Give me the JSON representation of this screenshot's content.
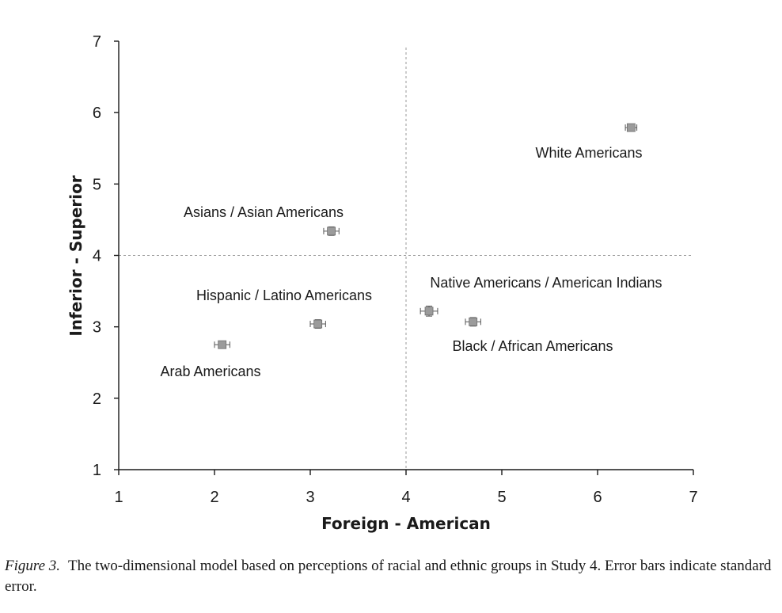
{
  "chart_data": {
    "type": "scatter",
    "xlabel": "Foreign - American",
    "ylabel": "Inferior - Superior",
    "xlim": [
      1,
      7
    ],
    "ylim": [
      1,
      7
    ],
    "x_ticks": [
      "1",
      "2",
      "3",
      "4",
      "5",
      "6",
      "7"
    ],
    "y_ticks": [
      "1",
      "2",
      "3",
      "4",
      "5",
      "6",
      "7"
    ],
    "reference_lines": {
      "x": 4,
      "y": 4,
      "style": "dashed"
    },
    "error_bars": "standard error",
    "points": [
      {
        "label": "White Americans",
        "x": 6.35,
        "y": 5.79,
        "x_err": 0.06,
        "y_err": 0.05
      },
      {
        "label": "Asians / Asian Americans",
        "x": 3.22,
        "y": 4.34,
        "x_err": 0.08,
        "y_err": 0.06
      },
      {
        "label": "Native Americans / American Indians",
        "x": 4.24,
        "y": 3.22,
        "x_err": 0.09,
        "y_err": 0.07
      },
      {
        "label": "Black / African Americans",
        "x": 4.7,
        "y": 3.07,
        "x_err": 0.08,
        "y_err": 0.06
      },
      {
        "label": "Hispanic / Latino Americans",
        "x": 3.08,
        "y": 3.04,
        "x_err": 0.08,
        "y_err": 0.06
      },
      {
        "label": "Arab Americans",
        "x": 2.08,
        "y": 2.75,
        "x_err": 0.08,
        "y_err": 0.05
      }
    ]
  },
  "caption": {
    "figure_label": "Figure 3.",
    "text": "The two-dimensional model based on perceptions of racial and ethnic groups in Study 4. Error bars indicate standard error."
  }
}
